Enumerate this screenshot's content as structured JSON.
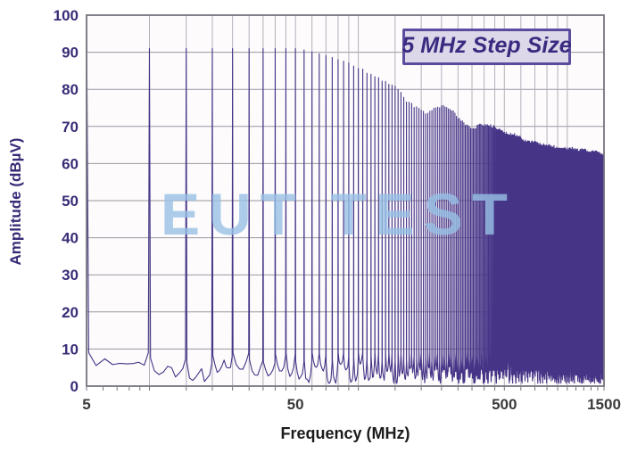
{
  "figure": {
    "watermark_text": "EUT TEST",
    "legend_label": "5 MHz Step Size",
    "x_axis_title": "Frequency (MHz)",
    "y_axis_title": "Amplitude (dBµV)"
  },
  "chart_data": {
    "type": "line",
    "subtype": "emission-spectrum-comb",
    "title": "",
    "legend": {
      "label": "5 MHz Step Size",
      "position": "top-right"
    },
    "xlabel": "Frequency (MHz)",
    "ylabel": "Amplitude (dBµV)",
    "x_scale": "log",
    "xlim": [
      5,
      1500
    ],
    "ylim": [
      0,
      100
    ],
    "grid": true,
    "x_ticks_labeled": [
      5,
      50,
      500,
      1500
    ],
    "y_ticks": [
      0,
      10,
      20,
      30,
      40,
      50,
      60,
      70,
      80,
      90,
      100
    ],
    "x_gridlines": [
      10,
      15,
      20,
      25,
      30,
      35,
      40,
      45,
      50,
      60,
      70,
      80,
      90,
      100,
      150,
      200,
      250,
      300,
      350,
      400,
      450,
      500,
      600,
      700,
      800,
      900,
      1000
    ],
    "x_minor_ticks": [
      5,
      6,
      7,
      8,
      9,
      10,
      15,
      20,
      25,
      30,
      35,
      40,
      45,
      50,
      60,
      70,
      80,
      90,
      100,
      150,
      200,
      250,
      300,
      350,
      400,
      450,
      500,
      600,
      700,
      800,
      900,
      1000,
      1100,
      1200,
      1300,
      1400,
      1500
    ],
    "comb_step_mhz": 5,
    "description": "Comb generator emission spectrum: discrete peaks every 5 MHz from 5 to 1500 MHz over a 2-10 dBuV noise floor; peak at 5 MHz reaches 100 dBuV, harmonics 10-50 MHz hold ~91 dBuV, then the envelope rolls off with sinc-like lobes to ~62 dBuV at 1500 MHz",
    "envelope_points_mhz_dbuv": [
      [
        5,
        100
      ],
      [
        10,
        91
      ],
      [
        20,
        91
      ],
      [
        30,
        91
      ],
      [
        40,
        91
      ],
      [
        50,
        91
      ],
      [
        55,
        90.6
      ],
      [
        60,
        90.1
      ],
      [
        65,
        89.6
      ],
      [
        70,
        89.1
      ],
      [
        75,
        88.6
      ],
      [
        80,
        88
      ],
      [
        85,
        87.6
      ],
      [
        90,
        87.1
      ],
      [
        95,
        86.3
      ],
      [
        100,
        85.6
      ],
      [
        110,
        84.6
      ],
      [
        120,
        83.6
      ],
      [
        130,
        82.3
      ],
      [
        140,
        81.4
      ],
      [
        150,
        80.5
      ],
      [
        160,
        78.8
      ],
      [
        170,
        77
      ],
      [
        180,
        75.8
      ],
      [
        190,
        75.2
      ],
      [
        200,
        74.3
      ],
      [
        210,
        73.6
      ],
      [
        220,
        74
      ],
      [
        235,
        74.9
      ],
      [
        250,
        75.3
      ],
      [
        265,
        75.1
      ],
      [
        280,
        74.3
      ],
      [
        290,
        73.4
      ],
      [
        300,
        72.4
      ],
      [
        310,
        71.5
      ],
      [
        320,
        70.7
      ],
      [
        330,
        70.1
      ],
      [
        340,
        69.6
      ],
      [
        350,
        69.3
      ],
      [
        365,
        69.7
      ],
      [
        380,
        70.2
      ],
      [
        395,
        70.5
      ],
      [
        410,
        70.4
      ],
      [
        430,
        70.2
      ],
      [
        450,
        69.7
      ],
      [
        470,
        69.1
      ],
      [
        490,
        68.5
      ],
      [
        510,
        68.1
      ],
      [
        530,
        67.8
      ],
      [
        550,
        67.6
      ],
      [
        570,
        67.7
      ],
      [
        590,
        67.1
      ],
      [
        610,
        66.5
      ],
      [
        640,
        66
      ],
      [
        670,
        65.7
      ],
      [
        700,
        65.6
      ],
      [
        730,
        65.3
      ],
      [
        760,
        65.1
      ],
      [
        800,
        64.8
      ],
      [
        850,
        64.5
      ],
      [
        900,
        64.2
      ],
      [
        950,
        64
      ],
      [
        1000,
        63.8
      ],
      [
        1050,
        64
      ],
      [
        1100,
        63.6
      ],
      [
        1150,
        63.4
      ],
      [
        1200,
        63.6
      ],
      [
        1250,
        63.2
      ],
      [
        1300,
        63
      ],
      [
        1350,
        63.2
      ],
      [
        1400,
        62.8
      ],
      [
        1450,
        62.3
      ],
      [
        1500,
        62
      ]
    ],
    "noise_floor_db_range": [
      2,
      10
    ],
    "colors": {
      "trace": "#463487",
      "plot_bg": "#fdfbfc",
      "grid_h": "#9a97a1",
      "grid_v": "#b3b0ba",
      "frame": "#76737e",
      "y_tick_text": "#382b76",
      "x_tick_text": "#3a3a3a",
      "x_axis_title_text": "#1b1b1b",
      "legend_bg": "#dcd8ea",
      "legend_border": "#5b4ca0",
      "legend_text": "#3b2b80",
      "watermark": "#97c0e5"
    }
  }
}
